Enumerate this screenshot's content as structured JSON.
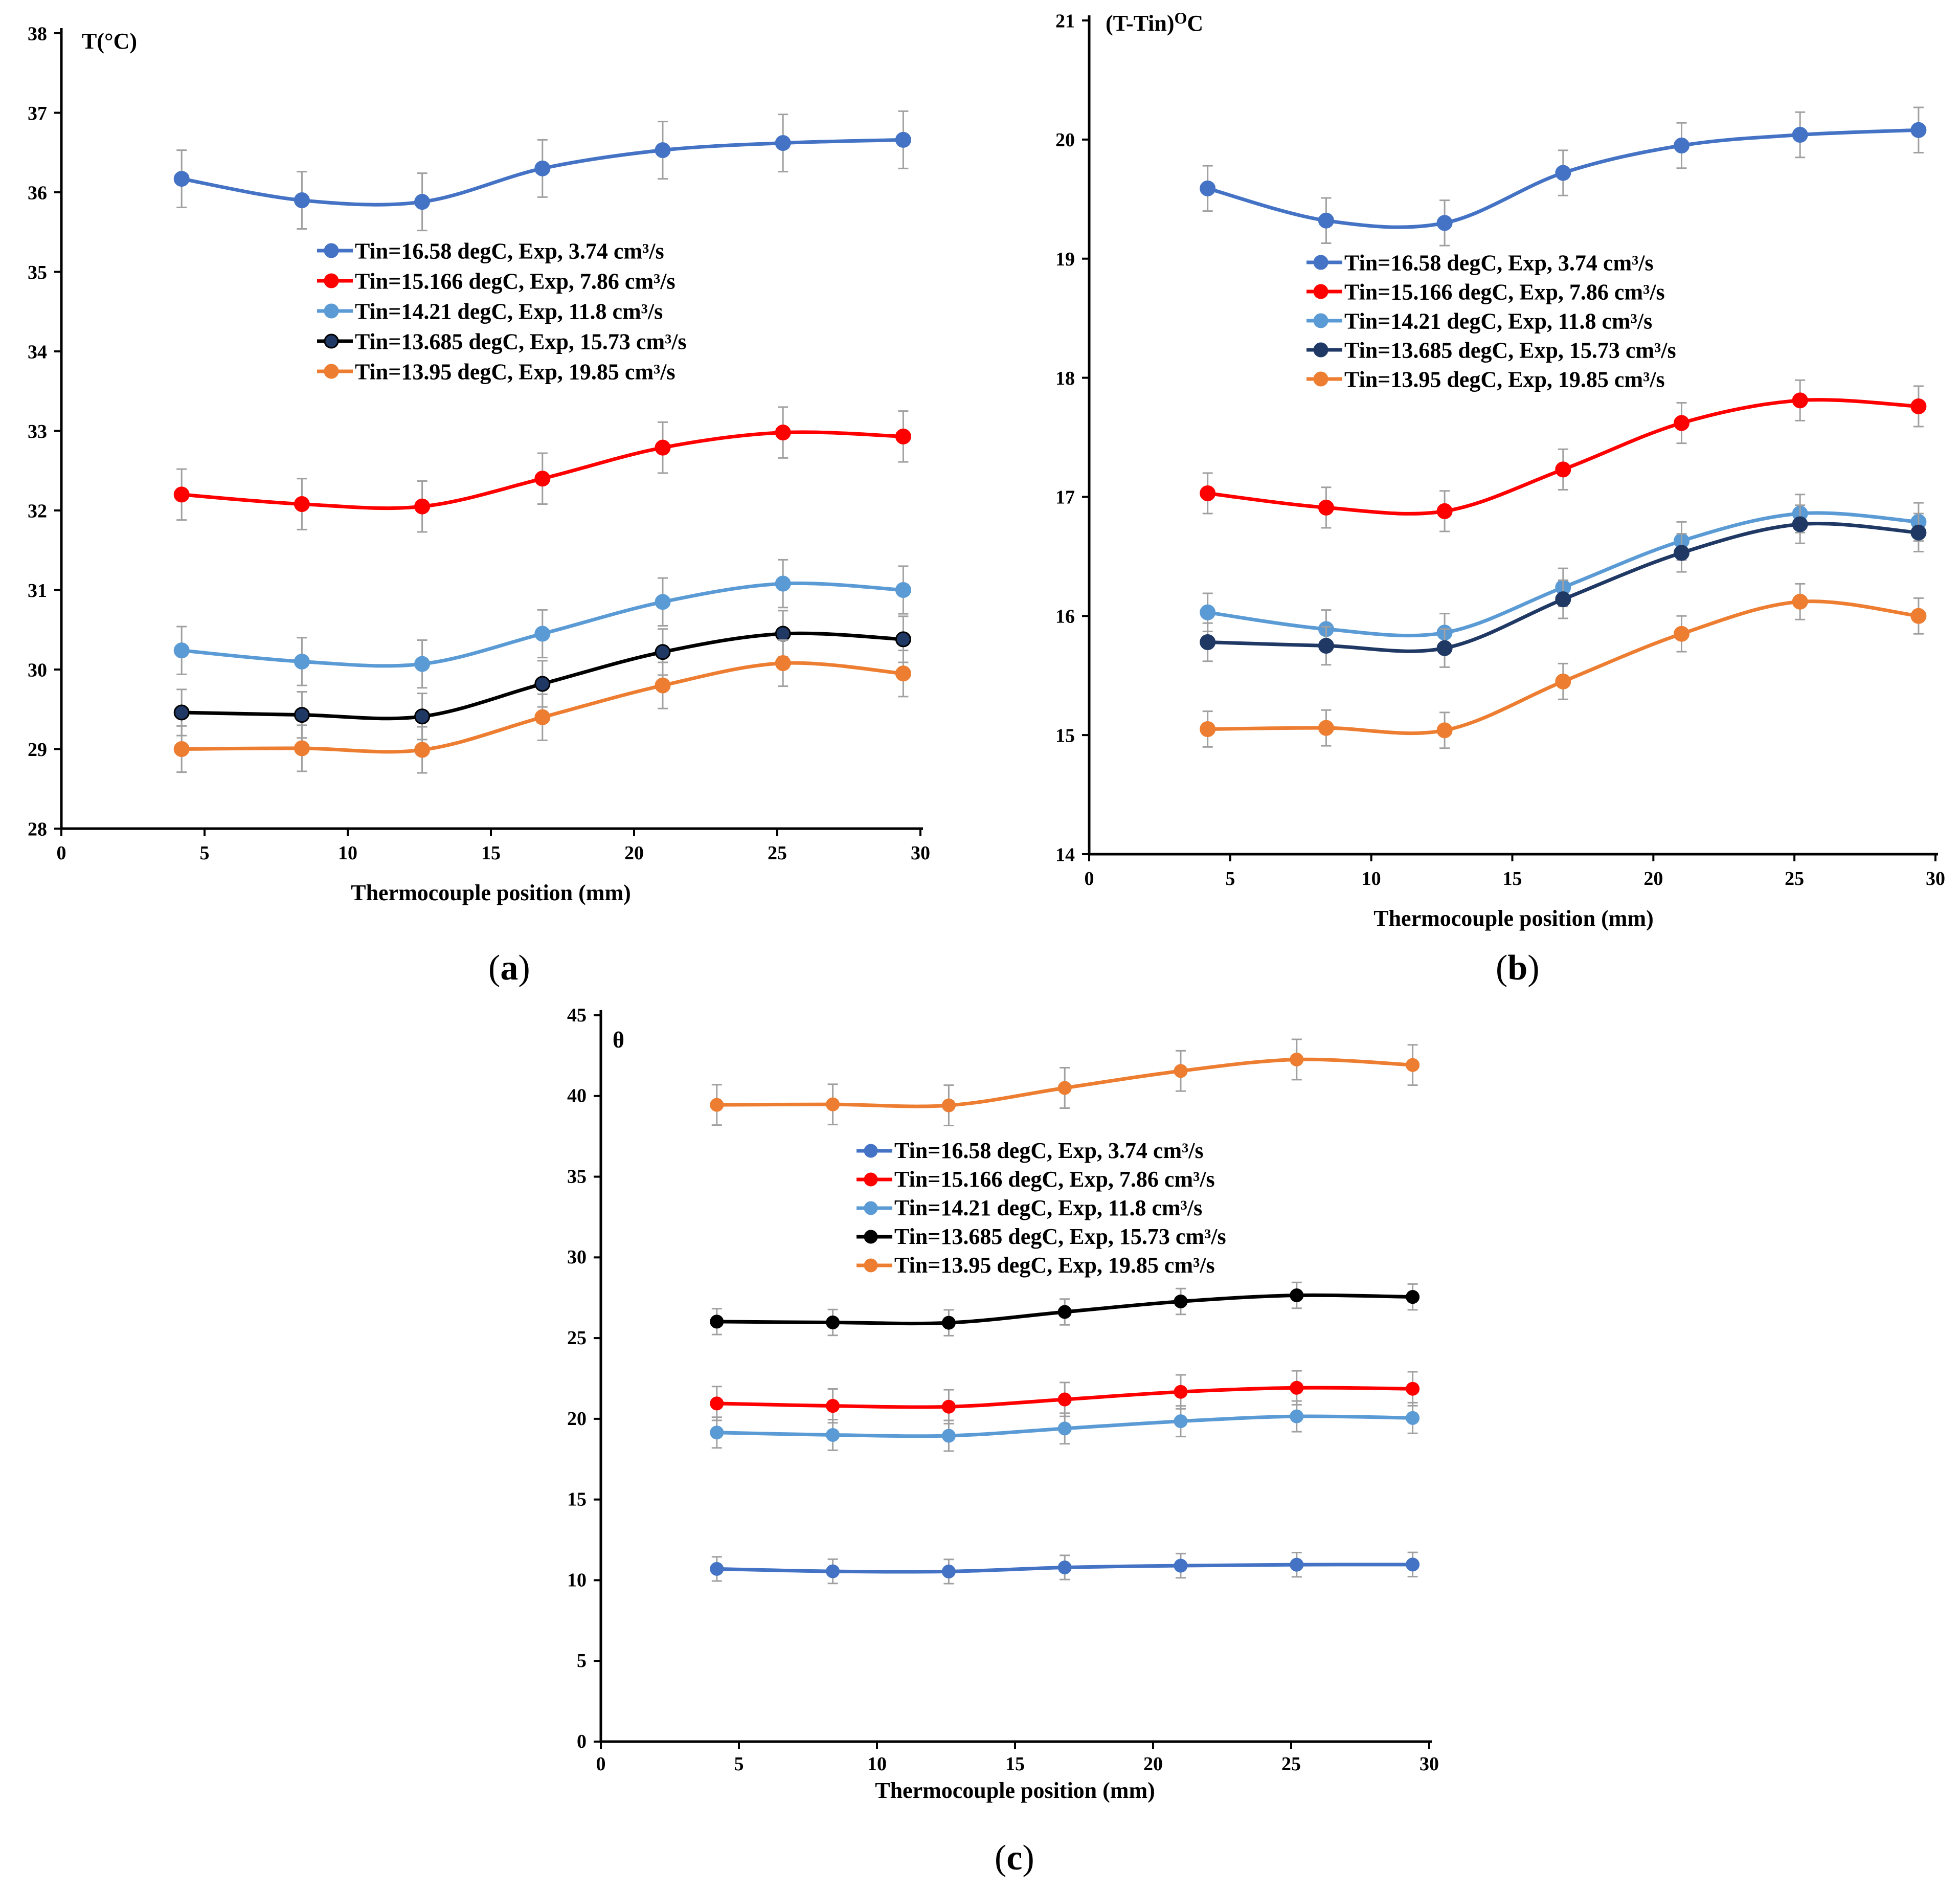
{
  "chart_data": [
    {
      "type": "line",
      "panel": "a",
      "panel_label": "a",
      "ylabel": "T(°C)",
      "xlabel": "Thermocouple position (mm)",
      "xlim": [
        0,
        30
      ],
      "ylim": [
        28,
        38
      ],
      "xticks": [
        0,
        5,
        10,
        15,
        20,
        25,
        30
      ],
      "yticks": [
        28,
        29,
        30,
        31,
        32,
        33,
        34,
        35,
        36,
        37,
        38
      ],
      "legend_position": "top-center",
      "x": [
        4.2,
        8.4,
        12.6,
        16.8,
        21.0,
        25.2,
        29.4
      ],
      "series": [
        {
          "name": "Tin=16.58 degC, Exp, 3.74 cm³/s",
          "color": "#4472C4",
          "values": [
            36.17,
            35.9,
            35.88,
            36.3,
            36.53,
            36.62,
            36.66
          ],
          "err": 0.36
        },
        {
          "name": "Tin=15.166 degC, Exp, 7.86 cm³/s",
          "color": "#FF0000",
          "values": [
            32.2,
            32.08,
            32.05,
            32.4,
            32.79,
            32.98,
            32.93
          ],
          "err": 0.32
        },
        {
          "name": "Tin=14.21 degC, Exp, 11.8 cm³/s",
          "color": "#5B9BD5",
          "values": [
            30.24,
            30.1,
            30.07,
            30.45,
            30.85,
            31.08,
            31.0
          ],
          "err": 0.3
        },
        {
          "name": "Tin=13.685 degC, Exp, 15.73 cm³/s",
          "color": "#000000",
          "marker_fill": "#1F3864",
          "values": [
            29.46,
            29.43,
            29.41,
            29.82,
            30.22,
            30.45,
            30.38
          ],
          "err": 0.29
        },
        {
          "name": "Tin=13.95 degC, Exp, 19.85 cm³/s",
          "color": "#ED7D31",
          "values": [
            29.0,
            29.01,
            28.99,
            29.4,
            29.8,
            30.08,
            29.95
          ],
          "err": 0.29
        }
      ]
    },
    {
      "type": "line",
      "panel": "b",
      "panel_label": "b",
      "ylabel": "(T-Tin)OC",
      "xlabel": "Thermocouple position (mm)",
      "xlim": [
        0,
        30
      ],
      "ylim": [
        14,
        21
      ],
      "xticks": [
        0,
        5,
        10,
        15,
        20,
        25,
        30
      ],
      "yticks": [
        14,
        15,
        16,
        17,
        18,
        19,
        20,
        21
      ],
      "legend_position": "top-center",
      "x": [
        4.2,
        8.4,
        12.6,
        16.8,
        21.0,
        25.2,
        29.4
      ],
      "series": [
        {
          "name": "Tin=16.58 degC, Exp, 3.74 cm³/s",
          "color": "#4472C4",
          "values": [
            19.59,
            19.32,
            19.3,
            19.72,
            19.95,
            20.04,
            20.08
          ],
          "err": 0.19
        },
        {
          "name": "Tin=15.166 degC, Exp, 7.86 cm³/s",
          "color": "#FF0000",
          "values": [
            17.03,
            16.91,
            16.88,
            17.23,
            17.62,
            17.81,
            17.76
          ],
          "err": 0.17
        },
        {
          "name": "Tin=14.21 degC, Exp, 11.8 cm³/s",
          "color": "#5B9BD5",
          "values": [
            16.03,
            15.89,
            15.86,
            16.24,
            16.63,
            16.86,
            16.79
          ],
          "err": 0.16
        },
        {
          "name": "Tin=13.685 degC, Exp, 15.73 cm³/s",
          "color": "#1F3864",
          "values": [
            15.78,
            15.75,
            15.73,
            16.14,
            16.53,
            16.77,
            16.7
          ],
          "err": 0.16
        },
        {
          "name": "Tin=13.95 degC, Exp, 19.85 cm³/s",
          "color": "#ED7D31",
          "values": [
            15.05,
            15.06,
            15.04,
            15.45,
            15.85,
            16.12,
            16.0
          ],
          "err": 0.15
        }
      ]
    },
    {
      "type": "line",
      "panel": "c",
      "panel_label": "c",
      "ylabel": "θ",
      "xlabel": "Thermocouple position (mm)",
      "xlim": [
        0,
        30
      ],
      "ylim": [
        0,
        45
      ],
      "xticks": [
        0,
        5,
        10,
        15,
        20,
        25,
        30
      ],
      "yticks": [
        0,
        5,
        10,
        15,
        20,
        25,
        30,
        35,
        40,
        45
      ],
      "legend_position": "top-center",
      "x": [
        4.2,
        8.4,
        12.6,
        16.8,
        21.0,
        25.2,
        29.4
      ],
      "series": [
        {
          "name": "Tin=16.58 degC, Exp, 3.74 cm³/s",
          "color": "#4472C4",
          "values": [
            10.7,
            10.55,
            10.54,
            10.79,
            10.9,
            10.96,
            10.97
          ],
          "err": 0.75
        },
        {
          "name": "Tin=15.166 degC, Exp, 7.86 cm³/s",
          "color": "#FF0000",
          "values": [
            20.95,
            20.8,
            20.75,
            21.2,
            21.67,
            21.92,
            21.86
          ],
          "err": 1.05
        },
        {
          "name": "Tin=14.21 degC, Exp, 11.8 cm³/s",
          "color": "#5B9BD5",
          "values": [
            19.15,
            19.0,
            18.95,
            19.4,
            19.85,
            20.15,
            20.05
          ],
          "err": 0.95
        },
        {
          "name": "Tin=13.685 degC, Exp, 15.73 cm³/s",
          "color": "#000000",
          "values": [
            26.02,
            25.97,
            25.95,
            26.62,
            27.27,
            27.65,
            27.55
          ],
          "err": 0.8
        },
        {
          "name": "Tin=13.95 degC, Exp, 19.85 cm³/s",
          "color": "#ED7D31",
          "values": [
            39.45,
            39.48,
            39.42,
            40.5,
            41.55,
            42.26,
            41.92
          ],
          "err": 1.25
        }
      ]
    }
  ]
}
